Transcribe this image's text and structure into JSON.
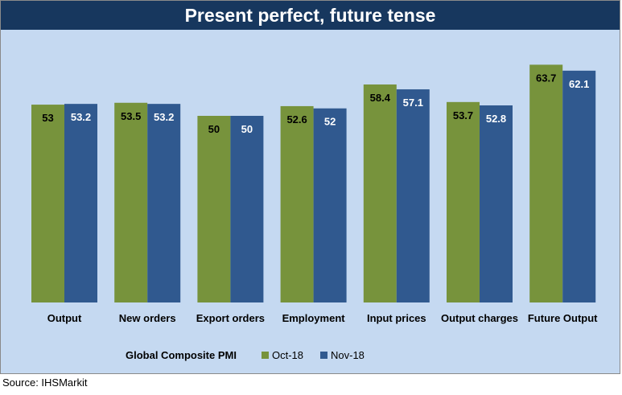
{
  "title": "Present perfect, future tense",
  "source": "Source: IHSMarkit",
  "legend_title": "Global Composite PMI",
  "colors": {
    "oct": "#77933c",
    "nov": "#30598f",
    "title_bg": "#17375e",
    "plot_bg": "#c5d9f1"
  },
  "chart_data": {
    "type": "bar",
    "title": "Present perfect, future tense",
    "categories": [
      "Output",
      "New orders",
      "Export orders",
      "Employment",
      "Input prices",
      "Output charges",
      "Future Output"
    ],
    "series": [
      {
        "name": "Oct-18",
        "values": [
          53,
          53.5,
          50,
          52.6,
          58.4,
          53.7,
          63.7
        ],
        "labels": [
          "53",
          "53.5",
          "50",
          "52.6",
          "58.4",
          "53.7",
          "63.7"
        ]
      },
      {
        "name": "Nov-18",
        "values": [
          53.2,
          53.2,
          50,
          52,
          57.1,
          52.8,
          62.1
        ],
        "labels": [
          "53.2",
          "53.2",
          "50",
          "52",
          "57.1",
          "52.8",
          "62.1"
        ]
      }
    ],
    "legend_title": "Global Composite PMI",
    "legend_position": "bottom",
    "grid": false,
    "xlabel": "",
    "ylabel": ""
  }
}
